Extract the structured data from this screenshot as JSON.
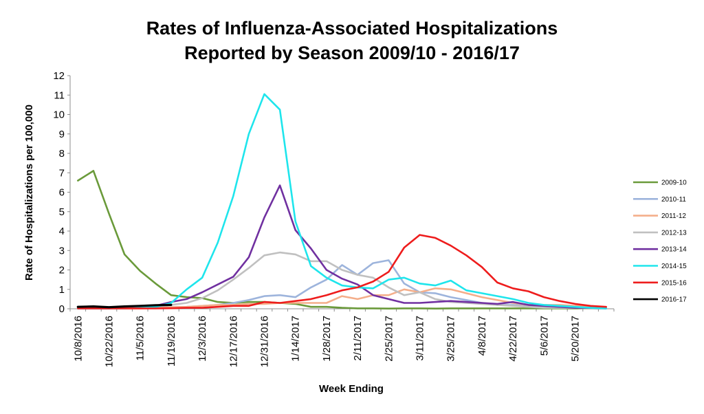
{
  "chart_data": {
    "type": "line",
    "title_line1": "Rates of Influenza-Associated Hospitalizations",
    "title_line2": "Reported by Season 2009/10 - 2016/17",
    "xlabel": "Week Ending",
    "ylabel": "Rate of Hospitalizations per 100,000",
    "ylim": [
      0,
      12
    ],
    "yticks": [
      0,
      1,
      2,
      3,
      4,
      5,
      6,
      7,
      8,
      9,
      10,
      11,
      12
    ],
    "grid": false,
    "legend_position": "right",
    "week_count": 35,
    "x_tick_labels": [
      {
        "week": 0,
        "label": "10/8/2016"
      },
      {
        "week": 2,
        "label": "10/22/2016"
      },
      {
        "week": 4,
        "label": "11/5/2016"
      },
      {
        "week": 6,
        "label": "11/19/2016"
      },
      {
        "week": 8,
        "label": "12/3/2016"
      },
      {
        "week": 10,
        "label": "12/17/2016"
      },
      {
        "week": 12,
        "label": "12/31/2016"
      },
      {
        "week": 14,
        "label": "1/14/2017"
      },
      {
        "week": 16,
        "label": "1/28/2017"
      },
      {
        "week": 18,
        "label": "2/11/2017"
      },
      {
        "week": 20,
        "label": "2/25/2017"
      },
      {
        "week": 22,
        "label": "3/11/2017"
      },
      {
        "week": 24,
        "label": "3/25/2017"
      },
      {
        "week": 26,
        "label": "4/8/2017"
      },
      {
        "week": 28,
        "label": "4/22/2017"
      },
      {
        "week": 30,
        "label": "5/6/2017"
      },
      {
        "week": 32,
        "label": "5/20/2017"
      }
    ],
    "series": [
      {
        "name": "2009-10",
        "color": "#6a9a3a",
        "values": [
          6.6,
          7.1,
          4.9,
          2.8,
          1.95,
          1.3,
          0.7,
          0.6,
          0.55,
          0.35,
          0.3,
          0.35,
          0.35,
          0.3,
          0.25,
          0.1,
          0.1,
          0.05,
          0.02,
          0.02,
          0.01,
          0.02,
          0.02,
          0.01,
          0.02,
          0.02,
          0.02,
          0.02,
          0.02,
          0.02,
          0.02,
          0.02,
          0.02,
          0.02,
          0.02
        ]
      },
      {
        "name": "2010-11",
        "color": "#9db4dc",
        "values": [
          0.02,
          0.02,
          0.02,
          0.02,
          0.03,
          0.05,
          0.08,
          0.1,
          0.15,
          0.2,
          0.3,
          0.45,
          0.65,
          0.7,
          0.6,
          1.1,
          1.5,
          2.25,
          1.75,
          2.35,
          2.5,
          1.3,
          0.85,
          0.8,
          0.6,
          0.45,
          0.3,
          0.2,
          0.2,
          0.15,
          0.1,
          0.05,
          0.05,
          0.02,
          0.02
        ]
      },
      {
        "name": "2011-12",
        "color": "#f4ae8a",
        "values": [
          0.02,
          0.02,
          0.02,
          0.02,
          0.02,
          0.05,
          0.08,
          0.1,
          0.15,
          0.2,
          0.2,
          0.25,
          0.25,
          0.3,
          0.3,
          0.3,
          0.3,
          0.65,
          0.5,
          0.7,
          0.7,
          1.0,
          0.85,
          1.05,
          1.0,
          0.8,
          0.6,
          0.45,
          0.3,
          0.2,
          0.2,
          0.2,
          0.15,
          0.1,
          0.05
        ]
      },
      {
        "name": "2012-13",
        "color": "#c0c0c0",
        "values": [
          0.02,
          0.02,
          0.02,
          0.02,
          0.05,
          0.1,
          0.2,
          0.3,
          0.55,
          0.95,
          1.5,
          2.1,
          2.75,
          2.9,
          2.8,
          2.45,
          2.45,
          2.0,
          1.75,
          1.6,
          1.1,
          0.7,
          0.85,
          0.5,
          0.35,
          0.3,
          0.25,
          0.2,
          0.15,
          0.1,
          0.05,
          0.05,
          0.05,
          0.02,
          0.02
        ]
      },
      {
        "name": "2013-14",
        "color": "#7030a0",
        "values": [
          0.02,
          0.02,
          0.02,
          0.05,
          0.1,
          0.15,
          0.35,
          0.5,
          0.85,
          1.25,
          1.65,
          2.65,
          4.7,
          6.35,
          4.05,
          3.1,
          2.0,
          1.55,
          1.25,
          0.7,
          0.5,
          0.3,
          0.3,
          0.35,
          0.4,
          0.35,
          0.3,
          0.25,
          0.35,
          0.2,
          0.15,
          0.1,
          0.05,
          0.05,
          0.02
        ]
      },
      {
        "name": "2014-15",
        "color": "#1ee5ec",
        "values": [
          0.02,
          0.02,
          0.02,
          0.02,
          0.05,
          0.1,
          0.3,
          1.0,
          1.6,
          3.4,
          5.8,
          9.0,
          11.05,
          10.25,
          4.5,
          2.2,
          1.6,
          1.2,
          1.1,
          1.05,
          1.5,
          1.6,
          1.3,
          1.2,
          1.45,
          0.95,
          0.8,
          0.65,
          0.5,
          0.3,
          0.2,
          0.15,
          0.1,
          0.05,
          0.02
        ]
      },
      {
        "name": "2015-16",
        "color": "#ee1c1c",
        "values": [
          0.02,
          0.02,
          0.02,
          0.02,
          0.02,
          0.02,
          0.03,
          0.05,
          0.05,
          0.1,
          0.15,
          0.15,
          0.35,
          0.3,
          0.4,
          0.5,
          0.7,
          0.95,
          1.1,
          1.4,
          1.9,
          3.15,
          3.8,
          3.65,
          3.25,
          2.75,
          2.15,
          1.35,
          1.05,
          0.9,
          0.6,
          0.4,
          0.25,
          0.15,
          0.1
        ]
      },
      {
        "name": "2016-17",
        "color": "#000000",
        "values": [
          0.1,
          0.12,
          0.08,
          0.12,
          0.15,
          0.18,
          0.2
        ]
      }
    ]
  }
}
